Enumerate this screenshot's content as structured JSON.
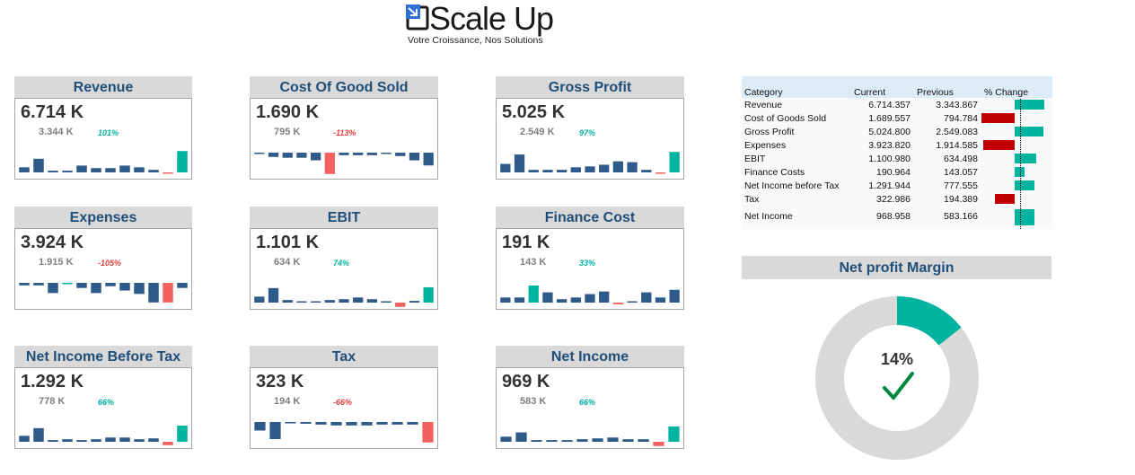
{
  "brand": {
    "name": "Scale Up",
    "tagline": "Votre Croissance, Nos Solutions"
  },
  "colors": {
    "title_bg": "#d9d9d9",
    "title_text": "#1f4e79",
    "spark_bar": "#2f5b8a",
    "positive": "#00b4a0",
    "negative": "#f4625f",
    "table_negative": "#c00000"
  },
  "kpis": [
    {
      "title": "Revenue",
      "value": "6.714 K",
      "previous": "3.344 K",
      "pct": "101%",
      "trend": "positive",
      "spark": [
        6,
        16,
        2,
        2,
        8,
        5,
        5,
        8,
        6,
        3,
        -1,
        25
      ],
      "spark_last_color": "positive",
      "spark_neg_color": "negative"
    },
    {
      "title": "Cost Of Good Sold",
      "value": "1.690 K",
      "previous": "795 K",
      "pct": "-113%",
      "trend": "negative",
      "spark": [
        -1,
        -5,
        -6,
        -6,
        -9,
        -25,
        -3,
        -3,
        -3,
        -1,
        -4,
        -9,
        -15
      ],
      "spark_last_color": "spark",
      "spark_neg_color": "spark",
      "spark_highlight_index": 5
    },
    {
      "title": "Gross Profit",
      "value": "5.025 K",
      "previous": "2.549 K",
      "pct": "97%",
      "trend": "positive",
      "spark": [
        10,
        21,
        3,
        3,
        3,
        6,
        7,
        9,
        13,
        12,
        3,
        -1,
        24
      ],
      "spark_last_color": "positive",
      "spark_neg_color": "negative"
    },
    {
      "title": "Expenses",
      "value": "3.924 K",
      "previous": "1.915 K",
      "pct": "-105%",
      "trend": "negative",
      "spark": [
        -3,
        -3,
        -12,
        -1,
        -6,
        -12,
        -4,
        -9,
        -13,
        -23,
        -23,
        -6
      ],
      "spark_last_color": "spark",
      "spark_neg_color": "spark",
      "spark_highlight_index": 10
    },
    {
      "title": "EBIT",
      "value": "1.101 K",
      "previous": "634 K",
      "pct": "74%",
      "trend": "positive",
      "spark": [
        7,
        17,
        3,
        1,
        1,
        3,
        4,
        6,
        4,
        1,
        -5,
        2,
        18
      ],
      "spark_last_color": "positive",
      "spark_neg_color": "negative"
    },
    {
      "title": "Finance Cost",
      "value": "191 K",
      "previous": "143 K",
      "pct": "33%",
      "trend": "positive",
      "spark": [
        6,
        6,
        20,
        12,
        4,
        6,
        10,
        13,
        -2,
        1,
        12,
        6,
        15
      ],
      "spark_last_color": "spark",
      "spark_neg_color": "negative",
      "spark_highlight_index": 2
    },
    {
      "title": "Net Income Before Tax",
      "value": "1.292 K",
      "previous": "778 K",
      "pct": "66%",
      "trend": "positive",
      "spark": [
        7,
        16,
        2,
        3,
        2,
        3,
        5,
        5,
        3,
        4,
        -4,
        19
      ],
      "spark_last_color": "positive",
      "spark_neg_color": "negative"
    },
    {
      "title": "Tax",
      "value": "323 K",
      "previous": "194 K",
      "pct": "-66%",
      "trend": "negative",
      "spark": [
        -10,
        -20,
        -1,
        -2,
        -3,
        -4,
        -4,
        -4,
        -3,
        -3,
        -3,
        -24
      ],
      "spark_last_color": "negative",
      "spark_neg_color": "spark"
    },
    {
      "title": "Net Income",
      "value": "969 K",
      "previous": "583 K",
      "pct": "66%",
      "trend": "positive",
      "spark": [
        6,
        11,
        2,
        2,
        2,
        3,
        4,
        5,
        3,
        3,
        -5,
        18
      ],
      "spark_last_color": "positive",
      "spark_neg_color": "negative"
    }
  ],
  "comparison_table": {
    "headers": [
      "Category",
      "Current",
      "Previous",
      "% Change"
    ],
    "rows": [
      {
        "category": "Revenue",
        "current": "6.714.357",
        "previous": "3.343.867",
        "change": 1.01
      },
      {
        "category": "Cost of Goods Sold",
        "current": "1.689.557",
        "previous": "794.784",
        "change": -1.13
      },
      {
        "category": "Gross Profit",
        "current": "5.024.800",
        "previous": "2.549.083",
        "change": 0.97
      },
      {
        "category": "Expenses",
        "current": "3.923.820",
        "previous": "1.914.585",
        "change": -1.05
      },
      {
        "category": "EBIT",
        "current": "1.100.980",
        "previous": "634.498",
        "change": 0.74
      },
      {
        "category": "Finance Costs",
        "current": "190.964",
        "previous": "143.057",
        "change": 0.33
      },
      {
        "category": "Net Income before Tax",
        "current": "1.291.944",
        "previous": "777.555",
        "change": 0.66
      },
      {
        "category": "Tax",
        "current": "322.986",
        "previous": "194.389",
        "change": -0.66
      },
      {
        "category": "Net Income",
        "current": "968.958",
        "previous": "583.166",
        "change": 0.66
      }
    ]
  },
  "net_profit_margin": {
    "title": "Net profit Margin",
    "value_label": "14%",
    "fraction": 0.144,
    "fill_color": "#00b4a0",
    "track_color": "#d9d9d9",
    "check_color": "#00873e"
  }
}
